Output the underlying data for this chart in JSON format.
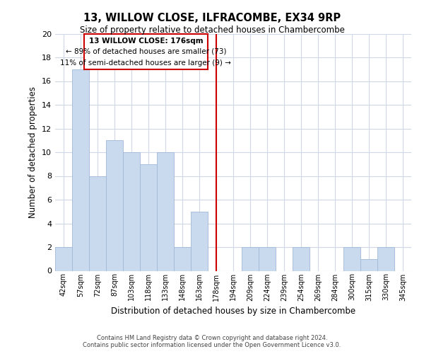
{
  "title": "13, WILLOW CLOSE, ILFRACOMBE, EX34 9RP",
  "subtitle": "Size of property relative to detached houses in Chambercombe",
  "xlabel": "Distribution of detached houses by size in Chambercombe",
  "ylabel": "Number of detached properties",
  "bin_labels": [
    "42sqm",
    "57sqm",
    "72sqm",
    "87sqm",
    "103sqm",
    "118sqm",
    "133sqm",
    "148sqm",
    "163sqm",
    "178sqm",
    "194sqm",
    "209sqm",
    "224sqm",
    "239sqm",
    "254sqm",
    "269sqm",
    "284sqm",
    "300sqm",
    "315sqm",
    "330sqm",
    "345sqm"
  ],
  "bar_heights": [
    2,
    17,
    8,
    11,
    10,
    9,
    10,
    2,
    5,
    0,
    0,
    2,
    2,
    0,
    2,
    0,
    0,
    2,
    1,
    2,
    0
  ],
  "bar_color": "#c9d9ee",
  "bar_edge_color": "#a0b8d8",
  "marker_bin_index": 9,
  "marker_line_color": "#cc0000",
  "ylim": [
    0,
    20
  ],
  "yticks": [
    0,
    2,
    4,
    6,
    8,
    10,
    12,
    14,
    16,
    18,
    20
  ],
  "annotation_title": "13 WILLOW CLOSE: 176sqm",
  "annotation_line1": "← 89% of detached houses are smaller (73)",
  "annotation_line2": "11% of semi-detached houses are larger (9) →",
  "annotation_box_color": "#ffffff",
  "annotation_box_edge": "#cc0000",
  "footer_line1": "Contains HM Land Registry data © Crown copyright and database right 2024.",
  "footer_line2": "Contains public sector information licensed under the Open Government Licence v3.0.",
  "background_color": "#ffffff",
  "grid_color": "#d0d8e8"
}
